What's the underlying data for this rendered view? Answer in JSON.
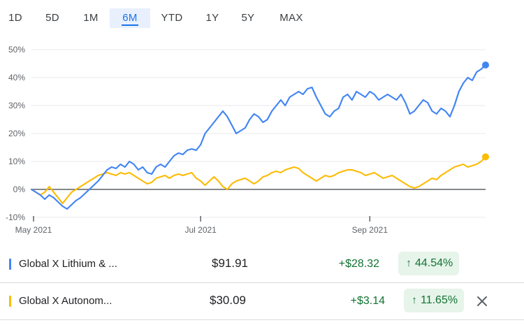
{
  "tabs": [
    {
      "label": "1D"
    },
    {
      "label": "5D"
    },
    {
      "label": "1M"
    },
    {
      "label": "6M",
      "active": true
    },
    {
      "label": "YTD"
    },
    {
      "label": "1Y"
    },
    {
      "label": "5Y"
    },
    {
      "label": "MAX"
    }
  ],
  "chart_data": {
    "type": "line",
    "x_tick_labels": [
      "May 2021",
      "Jul 2021",
      "Sep 2021"
    ],
    "y_tick_labels": [
      "50%",
      "40%",
      "30%",
      "20%",
      "10%",
      "0%",
      "-10%"
    ],
    "ylim": [
      -10,
      50
    ],
    "baseline": 0,
    "x_index_range": [
      0,
      102
    ],
    "series": [
      {
        "name": "Global X Lithium & ...",
        "color": "#4285f4",
        "end_marker": true,
        "values": [
          0,
          -1,
          -2,
          -3.5,
          -2,
          -3,
          -4.5,
          -6,
          -7,
          -5.5,
          -4,
          -3,
          -1.5,
          0,
          1.5,
          3,
          5,
          7,
          8,
          7.5,
          9,
          8,
          10,
          9,
          7,
          8,
          6,
          5.5,
          8,
          9,
          8,
          10,
          12,
          13,
          12.5,
          14,
          14.5,
          14,
          16,
          20,
          22,
          24,
          26,
          28,
          26,
          23,
          20,
          21,
          22,
          25,
          27,
          26,
          24,
          25,
          28,
          30,
          32,
          30,
          33,
          34,
          35,
          34,
          36,
          36.5,
          33,
          30,
          27,
          26,
          28,
          29,
          33,
          34,
          32,
          35,
          34,
          33,
          35,
          34,
          32,
          33,
          34,
          33,
          32,
          34,
          31,
          27,
          28,
          30,
          32,
          31,
          28,
          27,
          29,
          28,
          26,
          30,
          35,
          38,
          40,
          39,
          42,
          43,
          44.5
        ]
      },
      {
        "name": "Global X Autonom...",
        "color": "#fbbc04",
        "end_marker": true,
        "values": [
          0,
          -1,
          -2,
          -1,
          1,
          -1,
          -3,
          -5,
          -3,
          -1,
          0,
          1,
          2,
          3,
          4,
          5,
          5.5,
          6,
          5.5,
          5,
          6,
          5.5,
          6,
          5,
          4,
          3,
          2,
          2.5,
          4,
          4.5,
          5,
          4,
          5,
          5.5,
          5,
          5.5,
          6,
          4,
          3,
          1.5,
          3,
          4.5,
          3,
          1,
          0,
          2,
          3,
          3.5,
          4,
          3,
          2,
          3,
          4.5,
          5,
          6,
          6.5,
          6,
          7,
          7.5,
          8,
          7.5,
          6,
          5,
          4,
          3,
          4,
          5,
          4.5,
          5,
          6,
          6.5,
          7,
          7,
          6.5,
          6,
          5,
          5.5,
          6,
          5,
          4,
          4.5,
          5,
          4,
          3,
          2,
          1,
          0.5,
          1,
          2,
          3,
          4,
          3.5,
          5,
          6,
          7,
          8,
          8.5,
          9,
          8,
          8.5,
          9,
          10,
          11.65
        ]
      }
    ]
  },
  "rows": [
    {
      "name": "Global X Lithium & ...",
      "price": "$91.91",
      "change": "+$28.32",
      "pct": "44.54%",
      "color": "#4285f4",
      "arrow": "↑"
    },
    {
      "name": "Global X Autonom...",
      "price": "$30.09",
      "change": "+$3.14",
      "pct": "11.65%",
      "color": "#fbbc04",
      "arrow": "↑"
    }
  ],
  "icons": {
    "close": "close-icon",
    "arrow": "arrow-up-icon"
  }
}
